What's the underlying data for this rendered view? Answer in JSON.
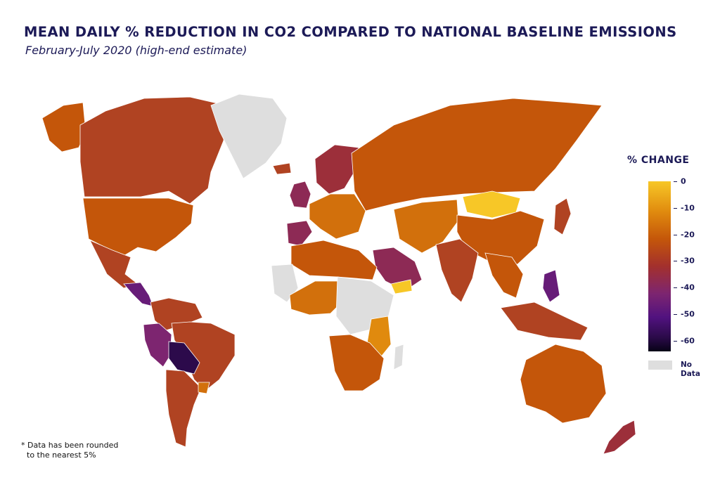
{
  "title": "MEAN DAILY % REDUCTION IN CO2 COMPARED TO NATIONAL BASELINE EMISSIONS",
  "subtitle": "February-July 2020 (high-end estimate)",
  "legend": {
    "title": "% CHANGE",
    "ticks": [
      "0",
      "-10",
      "-20",
      "-30",
      "-40",
      "-50",
      "-60"
    ],
    "no_data_label": "No Data"
  },
  "footnote": {
    "line1": "* Data has been rounded",
    "line2": "to the nearest 5%"
  },
  "colors": {
    "no_data": "#dedede",
    "scale_0": "#f7c727",
    "scale_10": "#e08a0e",
    "scale_20": "#c4560a",
    "scale_30": "#9c2f3a",
    "scale_40": "#7d2570",
    "scale_50": "#51127f",
    "scale_60": "#070216"
  },
  "map_data": {
    "scale_min": -65,
    "scale_max": 0,
    "regions": [
      {
        "name": "canada",
        "value": -25
      },
      {
        "name": "greenland",
        "value": null
      },
      {
        "name": "usa",
        "value": -20
      },
      {
        "name": "alaska",
        "value": -20
      },
      {
        "name": "mexico",
        "value": -25
      },
      {
        "name": "central-america",
        "value": -45
      },
      {
        "name": "colombia-venezuela",
        "value": -25
      },
      {
        "name": "peru-ecuador",
        "value": -40
      },
      {
        "name": "brazil",
        "value": -25
      },
      {
        "name": "bolivia-paraguay",
        "value": -55
      },
      {
        "name": "argentina-chile",
        "value": -25
      },
      {
        "name": "uruguay",
        "value": -15
      },
      {
        "name": "iceland",
        "value": -25
      },
      {
        "name": "uk-ireland",
        "value": -35
      },
      {
        "name": "iberia",
        "value": -35
      },
      {
        "name": "western-europe",
        "value": -15
      },
      {
        "name": "scandinavia",
        "value": -30
      },
      {
        "name": "russia",
        "value": -20
      },
      {
        "name": "north-africa",
        "value": -20
      },
      {
        "name": "sahara-west",
        "value": null
      },
      {
        "name": "west-africa",
        "value": -15
      },
      {
        "name": "central-africa",
        "value": null
      },
      {
        "name": "east-africa",
        "value": -10
      },
      {
        "name": "southern-africa",
        "value": -20
      },
      {
        "name": "madagascar",
        "value": null
      },
      {
        "name": "middle-east",
        "value": -35
      },
      {
        "name": "yemen",
        "value": 0
      },
      {
        "name": "central-asia",
        "value": -15
      },
      {
        "name": "india",
        "value": -25
      },
      {
        "name": "china",
        "value": -20
      },
      {
        "name": "mongolia",
        "value": 0
      },
      {
        "name": "southeast-asia",
        "value": -20
      },
      {
        "name": "philippines",
        "value": -45
      },
      {
        "name": "indonesia",
        "value": -25
      },
      {
        "name": "japan",
        "value": -25
      },
      {
        "name": "australia",
        "value": -20
      },
      {
        "name": "new-zealand",
        "value": -30
      }
    ]
  }
}
